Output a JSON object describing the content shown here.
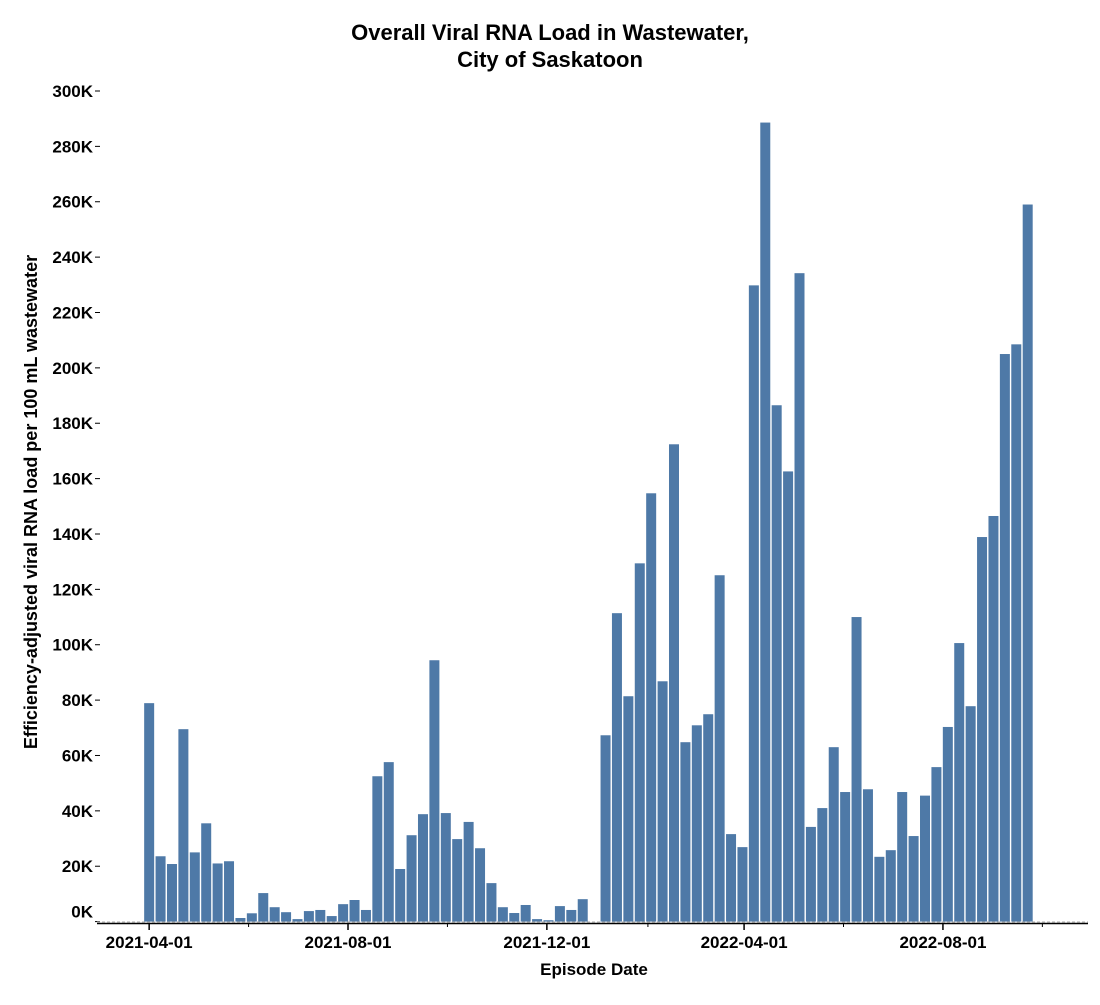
{
  "chart_data": {
    "type": "bar",
    "title": [
      "Overall Viral RNA Load in Wastewater,",
      "City of Saskatoon"
    ],
    "xlabel": "Episode Date",
    "ylabel": "Efficiency-adjusted viral RNA load per 100 mL wastewater",
    "ylim": [
      0,
      300000
    ],
    "xlim": [
      "2021-02-28",
      "2022-10-29"
    ],
    "grid": false,
    "bar_color": "#4e79a7",
    "y_ticks": [
      {
        "value": 0,
        "label": "0K"
      },
      {
        "value": 20000,
        "label": "20K"
      },
      {
        "value": 40000,
        "label": "40K"
      },
      {
        "value": 60000,
        "label": "60K"
      },
      {
        "value": 80000,
        "label": "80K"
      },
      {
        "value": 100000,
        "label": "100K"
      },
      {
        "value": 120000,
        "label": "120K"
      },
      {
        "value": 140000,
        "label": "140K"
      },
      {
        "value": 160000,
        "label": "160K"
      },
      {
        "value": 180000,
        "label": "180K"
      },
      {
        "value": 200000,
        "label": "200K"
      },
      {
        "value": 220000,
        "label": "220K"
      },
      {
        "value": 240000,
        "label": "240K"
      },
      {
        "value": 260000,
        "label": "260K"
      },
      {
        "value": 280000,
        "label": "280K"
      },
      {
        "value": 300000,
        "label": "300K"
      }
    ],
    "x_ticks": [
      {
        "date": "2021-04-01",
        "label": "2021-04-01"
      },
      {
        "date": "2021-08-01",
        "label": "2021-08-01"
      },
      {
        "date": "2021-12-01",
        "label": "2021-12-01"
      },
      {
        "date": "2022-04-01",
        "label": "2022-04-01"
      },
      {
        "date": "2022-08-01",
        "label": "2022-08-01"
      }
    ],
    "x_minor_ticks": [
      "2021-06-01",
      "2021-10-01",
      "2022-02-01",
      "2022-06-01",
      "2022-10-01"
    ],
    "x": [
      "2021-04-01",
      "2021-04-08",
      "2021-04-15",
      "2021-04-22",
      "2021-04-29",
      "2021-05-06",
      "2021-05-13",
      "2021-05-20",
      "2021-05-27",
      "2021-06-03",
      "2021-06-10",
      "2021-06-17",
      "2021-06-24",
      "2021-07-01",
      "2021-07-08",
      "2021-07-15",
      "2021-07-22",
      "2021-07-29",
      "2021-08-05",
      "2021-08-12",
      "2021-08-19",
      "2021-08-26",
      "2021-09-02",
      "2021-09-09",
      "2021-09-16",
      "2021-09-23",
      "2021-09-30",
      "2021-10-07",
      "2021-10-14",
      "2021-10-21",
      "2021-10-28",
      "2021-11-04",
      "2021-11-11",
      "2021-11-18",
      "2021-11-25",
      "2021-12-02",
      "2021-12-09",
      "2021-12-16",
      "2021-12-23",
      "2022-01-06",
      "2022-01-13",
      "2022-01-20",
      "2022-01-27",
      "2022-02-03",
      "2022-02-10",
      "2022-02-17",
      "2022-02-24",
      "2022-03-03",
      "2022-03-10",
      "2022-03-17",
      "2022-03-24",
      "2022-03-31",
      "2022-04-07",
      "2022-04-14",
      "2022-04-21",
      "2022-04-28",
      "2022-05-05",
      "2022-05-12",
      "2022-05-19",
      "2022-05-26",
      "2022-06-02",
      "2022-06-09",
      "2022-06-16",
      "2022-06-23",
      "2022-06-30",
      "2022-07-07",
      "2022-07-14",
      "2022-07-21",
      "2022-07-28",
      "2022-08-04",
      "2022-08-11",
      "2022-08-18",
      "2022-08-25",
      "2022-09-01",
      "2022-09-08",
      "2022-09-15",
      "2022-09-22"
    ],
    "values": [
      78900,
      23600,
      20800,
      69500,
      25000,
      35500,
      21000,
      21800,
      1300,
      3000,
      10300,
      5200,
      3400,
      900,
      3800,
      4200,
      2000,
      6300,
      7800,
      4200,
      52500,
      57600,
      19000,
      31200,
      38800,
      94400,
      39200,
      29800,
      36000,
      26500,
      13900,
      5200,
      3100,
      6000,
      900,
      500,
      5600,
      4200,
      8100,
      67300,
      111400,
      81400,
      129400,
      154700,
      86800,
      172400,
      64800,
      70900,
      74900,
      125100,
      31600,
      26900,
      229800,
      288600,
      186500,
      162600,
      234200,
      34200,
      41000,
      63000,
      46800,
      110000,
      47800,
      23400,
      25800,
      46800,
      30900,
      45500,
      55800,
      70300,
      100600,
      77800,
      138900,
      146500,
      205000,
      208500,
      259000
    ]
  }
}
